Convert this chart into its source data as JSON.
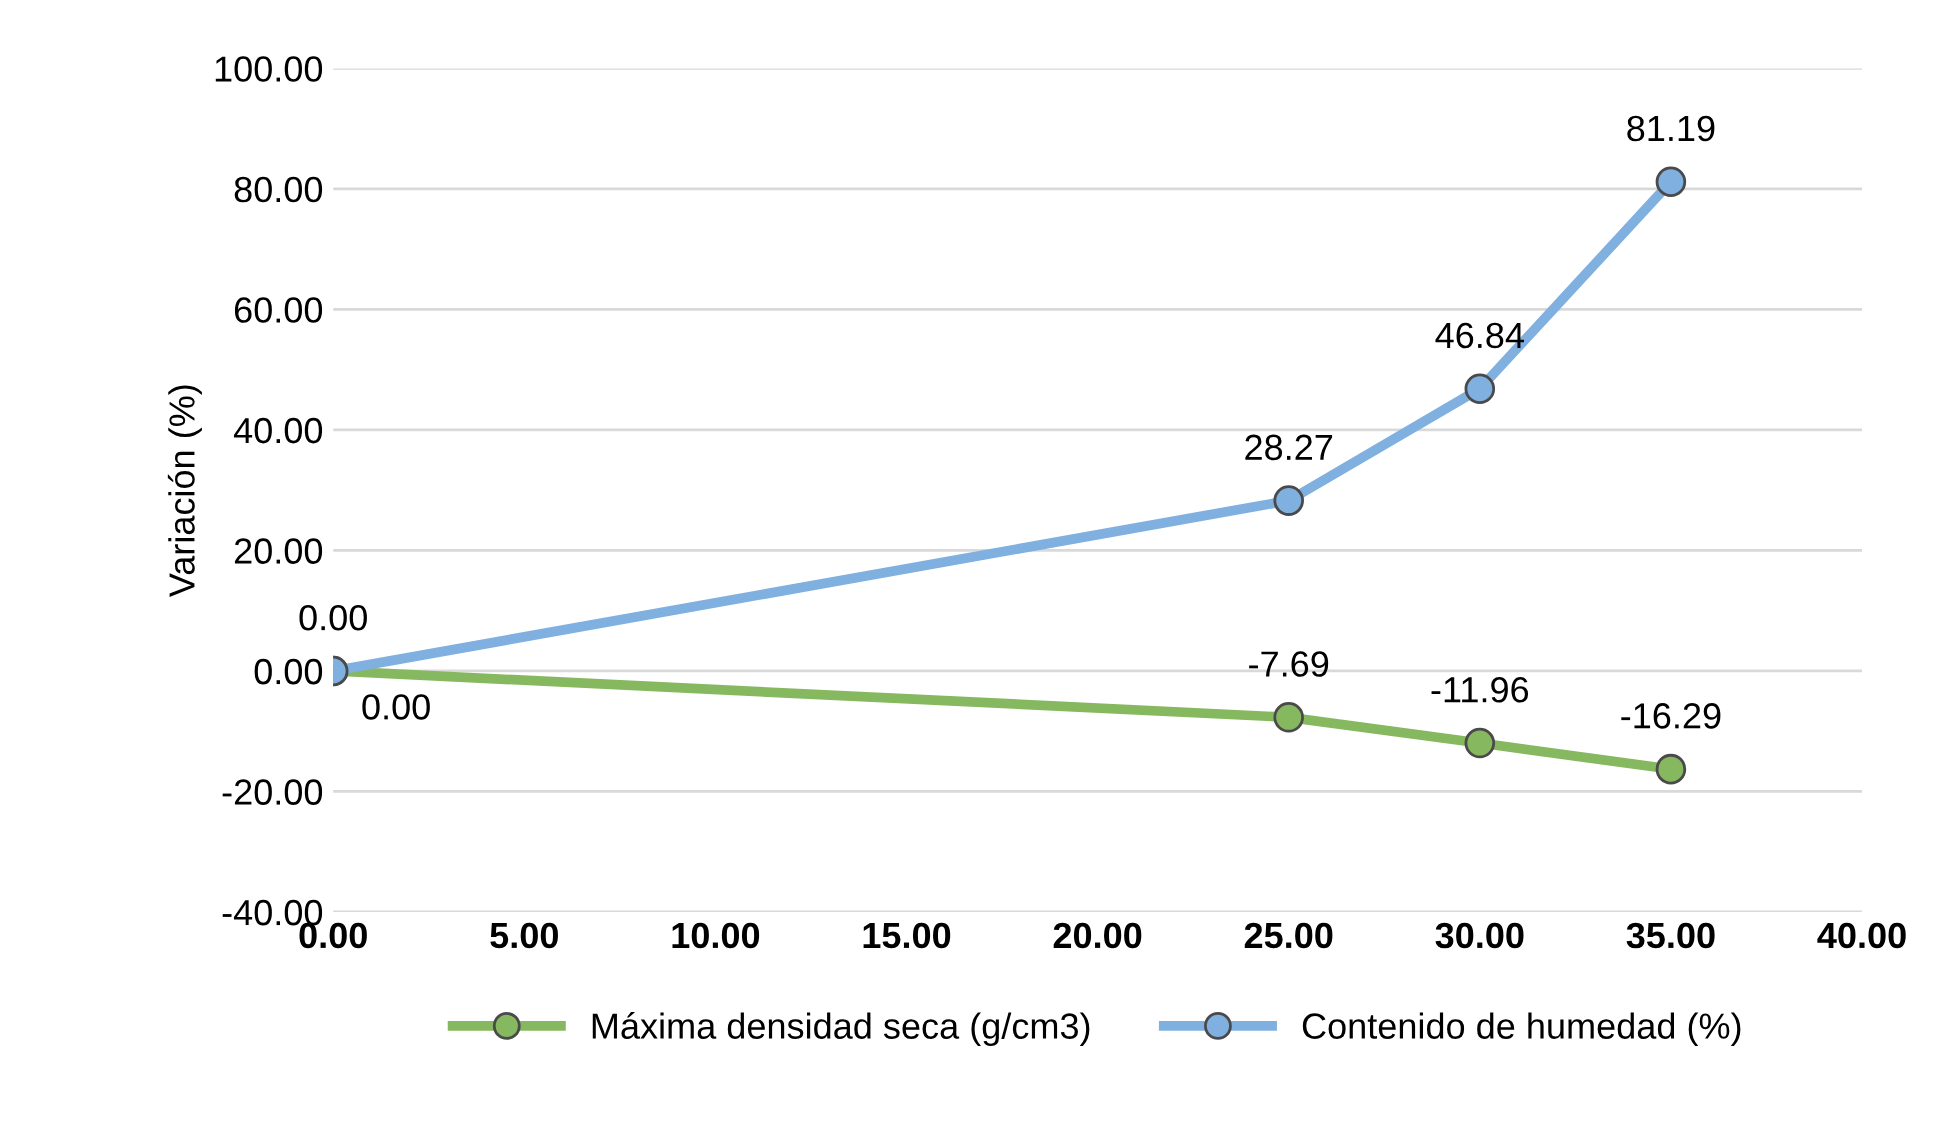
{
  "chart_data": {
    "type": "line",
    "ylabel": "Variación (%)",
    "x": [
      0,
      25,
      30,
      35
    ],
    "series": [
      {
        "name": "Máxima densidad seca (g/cm3)",
        "color": "#86b860",
        "values": [
          0,
          -7.69,
          -11.96,
          -16.29
        ],
        "value_labels": [
          "0.00",
          "-7.69",
          "-11.96",
          "-16.29"
        ]
      },
      {
        "name": "Contenido de humedad (%)",
        "color": "#7fb0e0",
        "values": [
          0,
          28.27,
          46.84,
          81.19
        ],
        "value_labels": [
          "0.00",
          "28.27",
          "46.84",
          "81.19"
        ]
      }
    ],
    "xlim": [
      0,
      40
    ],
    "xticks": [
      {
        "value": 0,
        "label": "0.00"
      },
      {
        "value": 5,
        "label": "5.00"
      },
      {
        "value": 10,
        "label": "10.00"
      },
      {
        "value": 15,
        "label": "15.00"
      },
      {
        "value": 20,
        "label": "20.00"
      },
      {
        "value": 25,
        "label": "25.00"
      },
      {
        "value": 30,
        "label": "30.00"
      },
      {
        "value": 35,
        "label": "35.00"
      },
      {
        "value": 40,
        "label": "40.00"
      }
    ],
    "ylim": [
      -40,
      100
    ],
    "yticks": [
      {
        "value": -40,
        "label": "-40.00"
      },
      {
        "value": -20,
        "label": "-20.00"
      },
      {
        "value": 0,
        "label": "0.00"
      },
      {
        "value": 20,
        "label": "20.00"
      },
      {
        "value": 40,
        "label": "40.00"
      },
      {
        "value": 60,
        "label": "60.00"
      },
      {
        "value": 80,
        "label": "80.00"
      },
      {
        "value": 100,
        "label": "100.00"
      }
    ],
    "grid": "y",
    "legend": "bottom",
    "marker": "circle",
    "line_style": "solid"
  }
}
